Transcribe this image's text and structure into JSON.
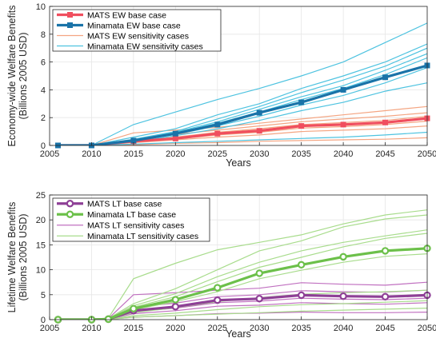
{
  "chart_data": [
    {
      "type": "line",
      "ylabel_line1": "Economy-wide Welfare Benefits",
      "ylabel_line2": "(Billions 2005 USD)",
      "xlabel": "Years",
      "xlim": [
        2005,
        2050
      ],
      "ylim": [
        0,
        10
      ],
      "xticks": [
        2005,
        2010,
        2015,
        2020,
        2025,
        2030,
        2035,
        2040,
        2045,
        2050
      ],
      "yticks": [
        0,
        2,
        4,
        6,
        8,
        10
      ],
      "legend_position": "top-left",
      "legend": [
        "MATS EW base case",
        "Minamata EW base case",
        "MATS EW sensitivity cases",
        "Minamata EW sensitivity cases"
      ],
      "base_series": [
        {
          "name": "MATS EW base case",
          "color": "#f04e5e",
          "marker": "square",
          "x": [
            2006,
            2010,
            2015,
            2020,
            2025,
            2030,
            2035,
            2040,
            2045,
            2050
          ],
          "y": [
            0,
            0,
            0.3,
            0.5,
            0.85,
            1.05,
            1.4,
            1.5,
            1.65,
            1.95
          ]
        },
        {
          "name": "Minamata EW base case",
          "color": "#1a73a8",
          "marker": "square",
          "x": [
            2006,
            2010,
            2015,
            2020,
            2025,
            2030,
            2035,
            2040,
            2045,
            2050
          ],
          "y": [
            0,
            0,
            0.35,
            0.85,
            1.5,
            2.35,
            3.1,
            4.0,
            4.9,
            5.75
          ]
        }
      ],
      "sensitivity_groups": [
        {
          "name": "MATS EW sensitivity cases",
          "color": "#f4a582",
          "x": [
            2006,
            2010,
            2015,
            2020,
            2025,
            2030,
            2035,
            2040,
            2045,
            2050
          ],
          "series": [
            [
              0,
              0,
              0.9,
              1.1,
              1.3,
              1.6,
              1.9,
              2.2,
              2.5,
              2.8
            ],
            [
              0,
              0,
              0.4,
              0.8,
              1.1,
              1.4,
              1.7,
              1.9,
              2.1,
              2.35
            ],
            [
              0,
              0,
              0.3,
              0.6,
              0.95,
              1.2,
              1.5,
              1.65,
              1.8,
              2.1
            ],
            [
              0,
              0,
              0.25,
              0.45,
              0.75,
              0.95,
              1.25,
              1.35,
              1.5,
              1.75
            ],
            [
              0,
              0,
              0.2,
              0.4,
              0.6,
              0.75,
              1.0,
              1.1,
              1.2,
              1.4
            ],
            [
              0,
              0,
              0.05,
              0.15,
              0.2,
              0.3,
              0.35,
              0.4,
              0.45,
              0.55
            ]
          ]
        },
        {
          "name": "Minamata EW sensitivity cases",
          "color": "#4ec3e0",
          "x": [
            2006,
            2010,
            2015,
            2020,
            2025,
            2030,
            2035,
            2040,
            2045,
            2050
          ],
          "series": [
            [
              0,
              0,
              1.5,
              2.4,
              3.3,
              4.1,
              5.0,
              6.0,
              7.4,
              8.8
            ],
            [
              0,
              0,
              0.6,
              1.2,
              2.2,
              3.0,
              4.1,
              5.0,
              6.0,
              7.3
            ],
            [
              0,
              0,
              0.45,
              1.0,
              1.9,
              2.8,
              3.8,
              4.7,
              5.7,
              7.0
            ],
            [
              0,
              0,
              0.4,
              0.95,
              1.7,
              2.6,
              3.5,
              4.3,
              5.4,
              6.6
            ],
            [
              0,
              0,
              0.35,
              0.9,
              1.6,
              2.4,
              3.3,
              4.1,
              5.1,
              6.3
            ],
            [
              0,
              0,
              0.3,
              0.8,
              1.4,
              2.1,
              2.9,
              3.6,
              4.5,
              5.6
            ],
            [
              0,
              0,
              0.25,
              0.7,
              1.2,
              1.8,
              2.5,
              3.1,
              3.9,
              4.5
            ],
            [
              0,
              0,
              0.1,
              0.2,
              0.3,
              0.4,
              0.5,
              0.6,
              0.75,
              0.95
            ]
          ]
        }
      ]
    },
    {
      "type": "line",
      "ylabel_line1": "Lifetime Welfare Benefits",
      "ylabel_line2": "(Billions 2005 USD)",
      "xlabel": "Years",
      "xlim": [
        2005,
        2050
      ],
      "ylim": [
        0,
        25
      ],
      "xticks": [
        2005,
        2010,
        2015,
        2020,
        2025,
        2030,
        2035,
        2040,
        2045,
        2050
      ],
      "yticks": [
        0,
        5,
        10,
        15,
        20,
        25
      ],
      "legend_position": "top-left",
      "legend": [
        "MATS LT base case",
        "Minamata LT base case",
        "MATS LT sensitivity cases",
        "Minamata LT sensitivity cases"
      ],
      "base_series": [
        {
          "name": "MATS LT base case",
          "color": "#8e3f96",
          "marker": "circle",
          "x": [
            2006,
            2010,
            2012,
            2015,
            2020,
            2025,
            2030,
            2035,
            2040,
            2045,
            2050
          ],
          "y": [
            0,
            0,
            0.1,
            1.8,
            2.6,
            3.9,
            4.2,
            4.9,
            4.7,
            4.6,
            4.9
          ]
        },
        {
          "name": "Minamata LT base case",
          "color": "#6cc04a",
          "marker": "circle",
          "x": [
            2006,
            2010,
            2012,
            2015,
            2020,
            2025,
            2030,
            2035,
            2040,
            2045,
            2050
          ],
          "y": [
            0,
            0,
            0.1,
            2.2,
            4.0,
            6.4,
            9.3,
            11.0,
            12.6,
            13.8,
            14.3
          ]
        }
      ],
      "sensitivity_groups": [
        {
          "name": "MATS LT sensitivity cases",
          "color": "#c070c0",
          "x": [
            2006,
            2010,
            2012,
            2015,
            2020,
            2025,
            2030,
            2035,
            2040,
            2045,
            2050
          ],
          "series": [
            [
              0,
              0,
              0.2,
              5.0,
              5.4,
              5.9,
              6.3,
              7.4,
              7.1,
              6.9,
              7.5
            ],
            [
              0,
              0,
              0.2,
              2.5,
              3.3,
              4.6,
              5.0,
              5.8,
              5.6,
              5.5,
              5.9
            ],
            [
              0,
              0,
              0.1,
              1.6,
              2.3,
              3.4,
              3.7,
              4.3,
              4.1,
              4.0,
              4.3
            ],
            [
              0,
              0,
              0.1,
              1.2,
              1.8,
              2.7,
              2.9,
              3.4,
              3.2,
              3.1,
              3.4
            ],
            [
              0,
              0,
              0.05,
              0.5,
              0.8,
              1.2,
              1.3,
              1.5,
              1.4,
              1.4,
              1.5
            ]
          ]
        },
        {
          "name": "Minamata LT sensitivity cases",
          "color": "#a8dc8c",
          "x": [
            2006,
            2010,
            2012,
            2015,
            2020,
            2025,
            2030,
            2035,
            2040,
            2045,
            2050
          ],
          "series": [
            [
              0,
              0,
              0.3,
              8.2,
              11.3,
              14.0,
              15.5,
              17.0,
              19.2,
              21.0,
              22.0
            ],
            [
              0,
              0,
              0.2,
              3.2,
              6.2,
              10.0,
              13.8,
              15.8,
              18.6,
              20.2,
              21.0
            ],
            [
              0,
              0,
              0.2,
              2.8,
              5.2,
              8.6,
              11.5,
              13.8,
              15.5,
              16.8,
              18.0
            ],
            [
              0,
              0,
              0.15,
              2.5,
              4.6,
              7.6,
              10.5,
              12.5,
              14.6,
              16.3,
              17.3
            ],
            [
              0,
              0,
              0.1,
              2.0,
              3.6,
              5.6,
              8.2,
              9.9,
              11.5,
              12.7,
              13.2
            ],
            [
              0,
              0,
              0.1,
              1.4,
              2.4,
              3.6,
              4.4,
              5.1,
              5.4,
              5.6,
              5.9
            ],
            [
              0,
              0,
              0.05,
              0.8,
              1.3,
              2.0,
              2.6,
              3.0,
              3.2,
              3.5,
              3.8
            ],
            [
              0,
              0,
              0.05,
              0.5,
              0.8,
              1.1,
              1.4,
              1.7,
              1.9,
              2.1,
              2.3
            ]
          ]
        }
      ]
    }
  ]
}
